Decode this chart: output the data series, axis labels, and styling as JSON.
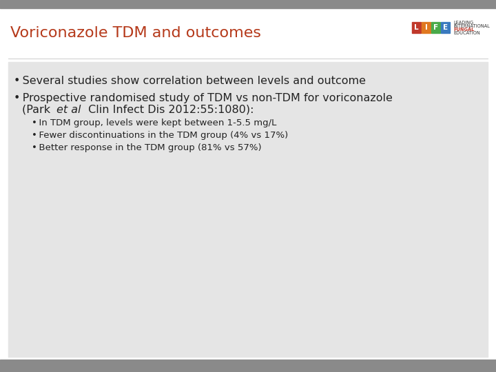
{
  "title": "Voriconazole TDM and outcomes",
  "title_color": "#b5391a",
  "title_fontsize": 16,
  "bg_color": "#ffffff",
  "top_stripe_color": "#888888",
  "bottom_stripe_color": "#888888",
  "content_bg": "#e5e5e5",
  "header_bg": "#ffffff",
  "bullet1": "Several studies show correlation between levels and outcome",
  "bullet2_main": "Prospective randomised study of TDM vs non-TDM for voriconazole",
  "bullet2_ref_pre": "(Park ",
  "bullet2_ref_italic": "et al",
  "bullet2_ref_post": " Clin Infect Dis 2012:55:1080):",
  "sub_bullet1": "In TDM group, levels were kept between 1-5.5 mg/L",
  "sub_bullet2": "Fewer discontinuations in the TDM group (4% vs 17%)",
  "sub_bullet3": "Better response in the TDM group (81% vs 57%)",
  "text_color": "#222222",
  "main_fontsize": 11.5,
  "sub_fontsize": 9.5,
  "life_colors": [
    "#c0392b",
    "#e07820",
    "#4aaa4a",
    "#3a7abf"
  ],
  "life_letters": [
    "L",
    "I",
    "F",
    "E"
  ],
  "life_text_color": "#333333",
  "life_fungal_color": "#c0392b"
}
